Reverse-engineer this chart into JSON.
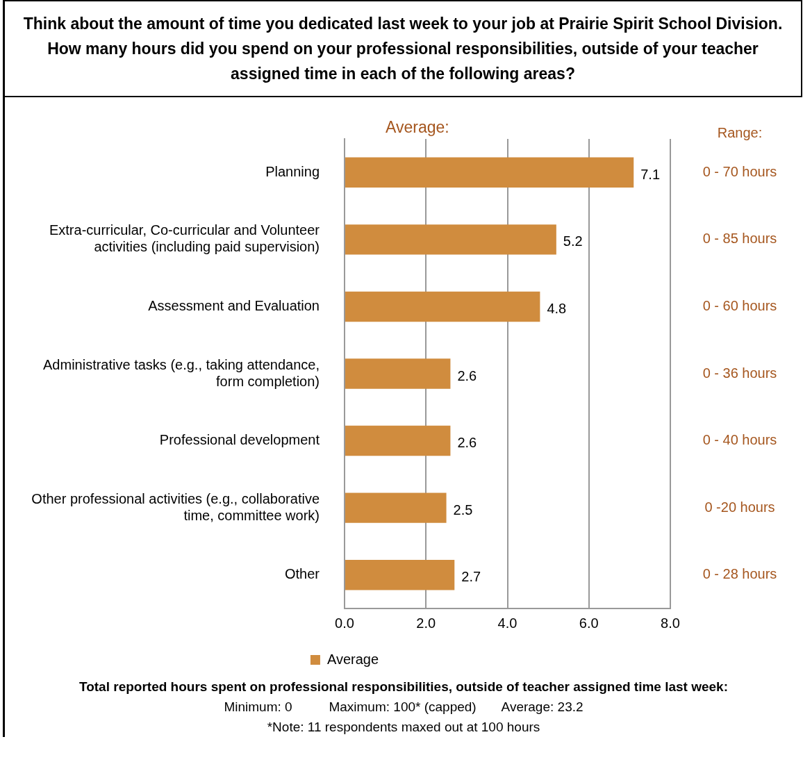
{
  "chart_data": {
    "type": "bar",
    "orientation": "horizontal",
    "title": "Think about the amount of time you dedicated last week to your job at Prairie Spirit School Division.  How many hours did you spend on your professional responsibilities, outside of your teacher assigned time in each of the following areas?",
    "subtitle": "Average:",
    "categories": [
      "Planning",
      "Extra-curricular, Co-curricular and Volunteer activities (including paid supervision)",
      "Assessment and Evaluation",
      "Administrative tasks (e.g., taking attendance, form completion)",
      "Professional development",
      "Other professional activities (e.g., collaborative time, committee work)",
      "Other"
    ],
    "series": [
      {
        "name": "Average",
        "color": "#d08c3e",
        "values": [
          7.1,
          5.2,
          4.8,
          2.6,
          2.6,
          2.5,
          2.7
        ]
      }
    ],
    "xlim": [
      0,
      8
    ],
    "xticks": [
      {
        "value": 0,
        "label": "0.0"
      },
      {
        "value": 2,
        "label": "2.0"
      },
      {
        "value": 4,
        "label": "4.0"
      },
      {
        "value": 6,
        "label": "6.0"
      },
      {
        "value": 8,
        "label": "8.0"
      }
    ],
    "grid": "x",
    "legend": "bottom",
    "data_labels": true,
    "annotations": [
      "Range:",
      "0 - 70 hours",
      "0 - 85 hours",
      "0 - 60 hours",
      "0 - 36 hours",
      "0 - 40 hours",
      "0 -20 hours",
      "0 - 28 hours",
      "Total reported hours spent on professional responsibilities, outside of teacher assigned time last week:",
      "Minimum: 0          Maximum: 100* (capped)       Average: 23.2",
      "*Note: 11 respondents maxed out at 100 hours"
    ]
  }
}
